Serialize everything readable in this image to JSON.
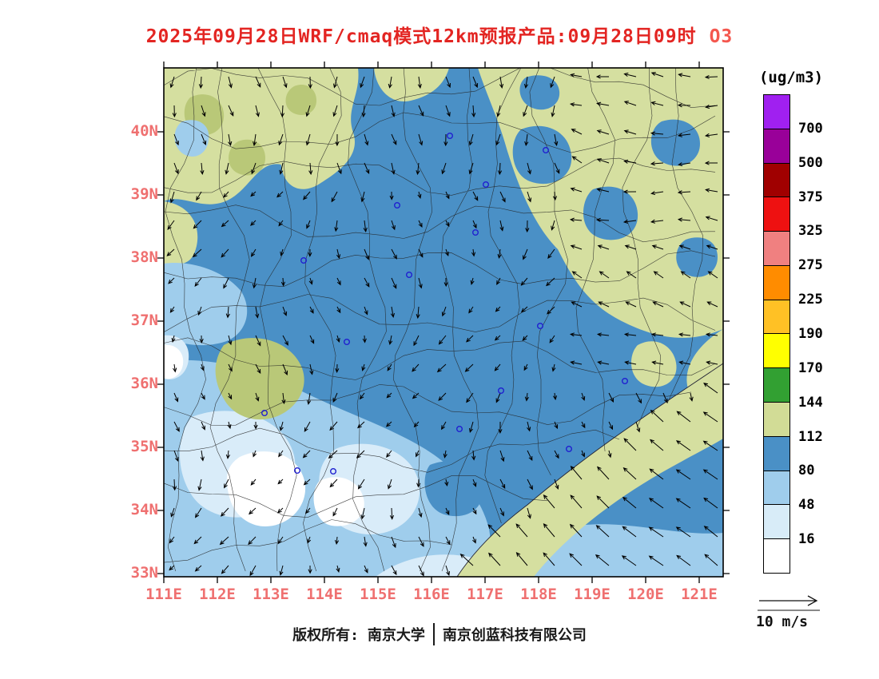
{
  "title": {
    "text": "2025年09月28日WRF/cmaq模式12km预报产品:09月28日09时",
    "species": "O3"
  },
  "colorbar": {
    "unit": "(ug/m3)",
    "labels_top_to_bottom": [
      "700",
      "500",
      "375",
      "325",
      "275",
      "225",
      "190",
      "170",
      "144",
      "112",
      "80",
      "48",
      "16"
    ],
    "colors_top_to_bottom": [
      "#a020f0",
      "#990099",
      "#a00000",
      "#ee1111",
      "#f08080",
      "#ff8c00",
      "#ffc125",
      "#ffff00",
      "#32a032",
      "#d2dc96",
      "#4a90c6",
      "#9fcdec",
      "#d8ecf8",
      "#ffffff"
    ]
  },
  "axes": {
    "y_labels": [
      "40N",
      "39N",
      "38N",
      "37N",
      "36N",
      "35N",
      "34N",
      "33N"
    ],
    "x_labels": [
      "111E",
      "112E",
      "113E",
      "114E",
      "115E",
      "116E",
      "117E",
      "118E",
      "119E",
      "120E",
      "121E"
    ]
  },
  "wind_legend": {
    "label": "10 m/s"
  },
  "footer": {
    "owner": "版权所有: 南京大学",
    "company": "南京创蓝科技有限公司"
  },
  "chart_data": {
    "type": "heatmap",
    "title": "2025年09月28日WRF/cmaq模式12km预报产品:09月28日09时 O3",
    "variable": "O3",
    "unit": "ug/m3",
    "x_ticks": [
      "111E",
      "112E",
      "113E",
      "114E",
      "115E",
      "116E",
      "117E",
      "118E",
      "119E",
      "120E",
      "121E"
    ],
    "y_ticks": [
      "33N",
      "34N",
      "35N",
      "36N",
      "37N",
      "38N",
      "39N",
      "40N"
    ],
    "x_range_deg": [
      111,
      121.45
    ],
    "y_range_deg": [
      32.9,
      41.0
    ],
    "contour_levels": [
      16,
      48,
      80,
      112,
      144,
      170,
      190,
      225,
      275,
      325,
      375,
      500,
      700
    ],
    "level_colors_low_to_high": [
      "#ffffff",
      "#d8ecf8",
      "#9fcdec",
      "#4a90c6",
      "#d2dc96",
      "#32a032",
      "#ffff00",
      "#ffc125",
      "#ff8c00",
      "#f08080",
      "#ee1111",
      "#a00000",
      "#990099",
      "#a020f0"
    ],
    "legend_position": "right",
    "grid": false,
    "overlays": [
      "wind-vectors",
      "administrative-boundaries",
      "city-markers"
    ],
    "wind_reference_vector": "10 m/s"
  }
}
